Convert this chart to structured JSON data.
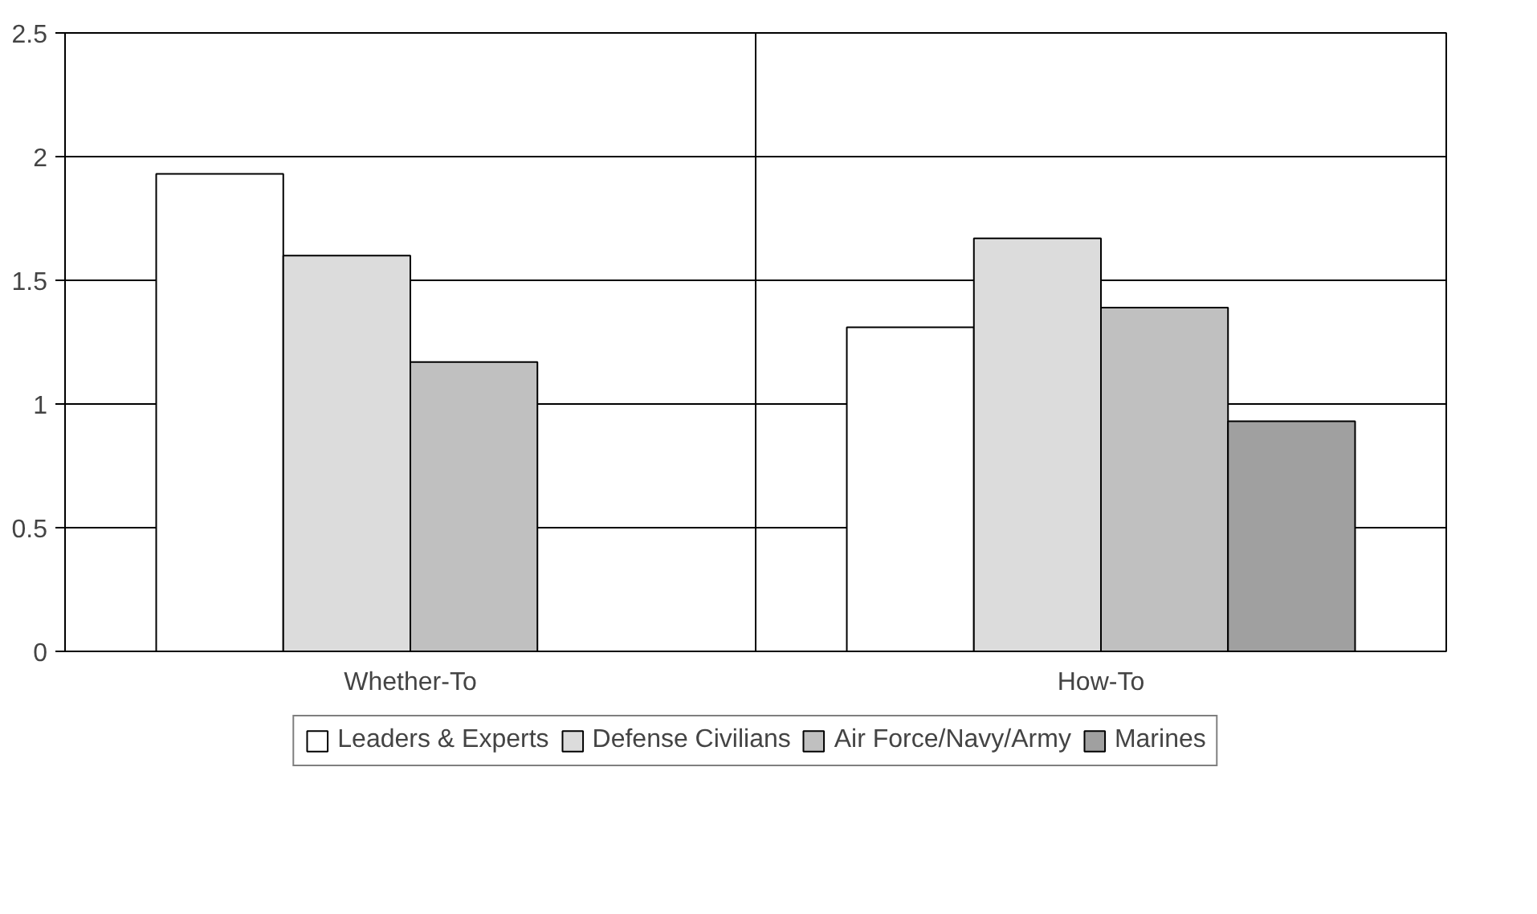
{
  "chart_data": {
    "type": "bar",
    "categories": [
      "Whether-To",
      "How-To"
    ],
    "series": [
      {
        "name": "Leaders & Experts",
        "color": "#ffffff",
        "values": [
          1.93,
          1.31
        ]
      },
      {
        "name": "Defense Civilians",
        "color": "#dcdcdc",
        "values": [
          1.6,
          1.67
        ]
      },
      {
        "name": "Air Force/Navy/Army",
        "color": "#c0c0c0",
        "values": [
          1.17,
          1.39
        ]
      },
      {
        "name": "Marines",
        "color": "#a0a0a0",
        "values": [
          null,
          0.93
        ]
      }
    ],
    "ylim": [
      0,
      2.5
    ],
    "yticks": [
      0,
      0.5,
      1,
      1.5,
      2,
      2.5
    ],
    "grid": true,
    "legend": "bottom"
  }
}
